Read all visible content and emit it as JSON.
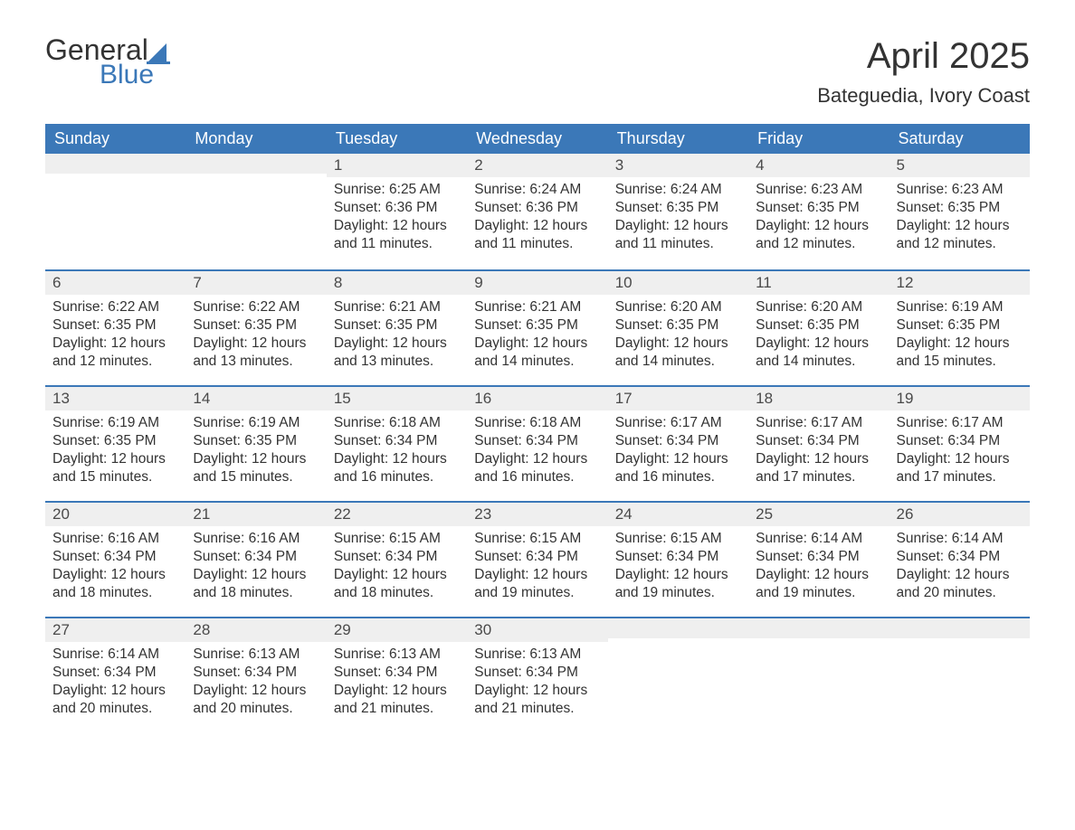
{
  "logo": {
    "line1": "General",
    "line2": "Blue",
    "icon_color": "#3b78b8"
  },
  "title": "April 2025",
  "location": "Bateguedia, Ivory Coast",
  "colors": {
    "header_bg": "#3b78b8",
    "header_fg": "#ffffff",
    "stripe_bg": "#efefef",
    "text": "#333333",
    "page_bg": "#ffffff"
  },
  "weekdays": [
    "Sunday",
    "Monday",
    "Tuesday",
    "Wednesday",
    "Thursday",
    "Friday",
    "Saturday"
  ],
  "labels": {
    "sunrise": "Sunrise: ",
    "sunset": "Sunset: ",
    "daylight": "Daylight: "
  },
  "weeks": [
    [
      null,
      null,
      {
        "n": "1",
        "sunrise": "6:25 AM",
        "sunset": "6:36 PM",
        "daylight": "12 hours and 11 minutes."
      },
      {
        "n": "2",
        "sunrise": "6:24 AM",
        "sunset": "6:36 PM",
        "daylight": "12 hours and 11 minutes."
      },
      {
        "n": "3",
        "sunrise": "6:24 AM",
        "sunset": "6:35 PM",
        "daylight": "12 hours and 11 minutes."
      },
      {
        "n": "4",
        "sunrise": "6:23 AM",
        "sunset": "6:35 PM",
        "daylight": "12 hours and 12 minutes."
      },
      {
        "n": "5",
        "sunrise": "6:23 AM",
        "sunset": "6:35 PM",
        "daylight": "12 hours and 12 minutes."
      }
    ],
    [
      {
        "n": "6",
        "sunrise": "6:22 AM",
        "sunset": "6:35 PM",
        "daylight": "12 hours and 12 minutes."
      },
      {
        "n": "7",
        "sunrise": "6:22 AM",
        "sunset": "6:35 PM",
        "daylight": "12 hours and 13 minutes."
      },
      {
        "n": "8",
        "sunrise": "6:21 AM",
        "sunset": "6:35 PM",
        "daylight": "12 hours and 13 minutes."
      },
      {
        "n": "9",
        "sunrise": "6:21 AM",
        "sunset": "6:35 PM",
        "daylight": "12 hours and 14 minutes."
      },
      {
        "n": "10",
        "sunrise": "6:20 AM",
        "sunset": "6:35 PM",
        "daylight": "12 hours and 14 minutes."
      },
      {
        "n": "11",
        "sunrise": "6:20 AM",
        "sunset": "6:35 PM",
        "daylight": "12 hours and 14 minutes."
      },
      {
        "n": "12",
        "sunrise": "6:19 AM",
        "sunset": "6:35 PM",
        "daylight": "12 hours and 15 minutes."
      }
    ],
    [
      {
        "n": "13",
        "sunrise": "6:19 AM",
        "sunset": "6:35 PM",
        "daylight": "12 hours and 15 minutes."
      },
      {
        "n": "14",
        "sunrise": "6:19 AM",
        "sunset": "6:35 PM",
        "daylight": "12 hours and 15 minutes."
      },
      {
        "n": "15",
        "sunrise": "6:18 AM",
        "sunset": "6:34 PM",
        "daylight": "12 hours and 16 minutes."
      },
      {
        "n": "16",
        "sunrise": "6:18 AM",
        "sunset": "6:34 PM",
        "daylight": "12 hours and 16 minutes."
      },
      {
        "n": "17",
        "sunrise": "6:17 AM",
        "sunset": "6:34 PM",
        "daylight": "12 hours and 16 minutes."
      },
      {
        "n": "18",
        "sunrise": "6:17 AM",
        "sunset": "6:34 PM",
        "daylight": "12 hours and 17 minutes."
      },
      {
        "n": "19",
        "sunrise": "6:17 AM",
        "sunset": "6:34 PM",
        "daylight": "12 hours and 17 minutes."
      }
    ],
    [
      {
        "n": "20",
        "sunrise": "6:16 AM",
        "sunset": "6:34 PM",
        "daylight": "12 hours and 18 minutes."
      },
      {
        "n": "21",
        "sunrise": "6:16 AM",
        "sunset": "6:34 PM",
        "daylight": "12 hours and 18 minutes."
      },
      {
        "n": "22",
        "sunrise": "6:15 AM",
        "sunset": "6:34 PM",
        "daylight": "12 hours and 18 minutes."
      },
      {
        "n": "23",
        "sunrise": "6:15 AM",
        "sunset": "6:34 PM",
        "daylight": "12 hours and 19 minutes."
      },
      {
        "n": "24",
        "sunrise": "6:15 AM",
        "sunset": "6:34 PM",
        "daylight": "12 hours and 19 minutes."
      },
      {
        "n": "25",
        "sunrise": "6:14 AM",
        "sunset": "6:34 PM",
        "daylight": "12 hours and 19 minutes."
      },
      {
        "n": "26",
        "sunrise": "6:14 AM",
        "sunset": "6:34 PM",
        "daylight": "12 hours and 20 minutes."
      }
    ],
    [
      {
        "n": "27",
        "sunrise": "6:14 AM",
        "sunset": "6:34 PM",
        "daylight": "12 hours and 20 minutes."
      },
      {
        "n": "28",
        "sunrise": "6:13 AM",
        "sunset": "6:34 PM",
        "daylight": "12 hours and 20 minutes."
      },
      {
        "n": "29",
        "sunrise": "6:13 AM",
        "sunset": "6:34 PM",
        "daylight": "12 hours and 21 minutes."
      },
      {
        "n": "30",
        "sunrise": "6:13 AM",
        "sunset": "6:34 PM",
        "daylight": "12 hours and 21 minutes."
      },
      null,
      null,
      null
    ]
  ]
}
